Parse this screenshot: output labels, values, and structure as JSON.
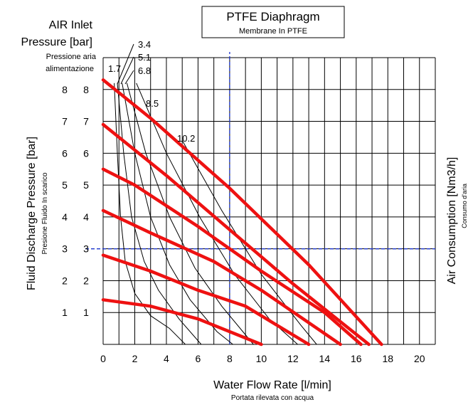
{
  "chart_data": {
    "type": "line",
    "title": "PTFE Diaphragm",
    "subtitle": "Membrane In PTFE",
    "xlabel": "Water Flow Rate [l/min]",
    "xlabel_sub": "Portata rilevata con acqua",
    "ylabel": "Fluid Discharge Pressure [bar]",
    "ylabel_sub": "Presione Fluido In scarico",
    "y2label": "Air Consumption [Nm3/h]",
    "y2label_sub": "Consumo d'aria",
    "inlet_label_line1": "AIR Inlet",
    "inlet_label_line2": "Pressure [bar]",
    "inlet_label_sub1": "Pressione aria",
    "inlet_label_sub2": "alimentazione",
    "xlim": [
      0,
      21
    ],
    "ylim": [
      0,
      9
    ],
    "x_ticks": [
      0,
      2,
      4,
      6,
      8,
      10,
      12,
      14,
      16,
      18,
      20
    ],
    "y_ticks": [
      1,
      2,
      3,
      4,
      5,
      6,
      7,
      8
    ],
    "y_ticks_outer": [
      "1",
      "2",
      "3",
      "4",
      "5",
      "6",
      "7",
      "8"
    ],
    "grid": true,
    "reference_point": {
      "x": 8,
      "y": 3
    },
    "colors": {
      "pressure_curves": "#ee1111",
      "air_curves": "#000000",
      "reference_lines": "#1a33cc",
      "grid": "#000000"
    },
    "series": [
      {
        "name": "8",
        "points": [
          [
            0,
            8.3
          ],
          [
            3,
            7.1
          ],
          [
            8,
            4.9
          ],
          [
            13,
            2.5
          ],
          [
            17.6,
            0
          ]
        ]
      },
      {
        "name": "7",
        "points": [
          [
            0,
            6.9
          ],
          [
            4,
            5.3
          ],
          [
            8,
            3.6
          ],
          [
            12,
            1.9
          ],
          [
            16.8,
            0
          ]
        ]
      },
      {
        "name": "6",
        "points": [
          [
            0,
            5.5
          ],
          [
            2,
            5.0
          ],
          [
            6,
            3.7
          ],
          [
            10,
            2.3
          ],
          [
            14,
            1.0
          ],
          [
            16.3,
            0
          ]
        ]
      },
      {
        "name": "5",
        "points": [
          [
            0,
            4.2
          ],
          [
            3,
            3.5
          ],
          [
            7,
            2.6
          ],
          [
            10,
            1.7
          ],
          [
            15,
            0
          ]
        ]
      },
      {
        "name": "4",
        "points": [
          [
            0,
            2.8
          ],
          [
            3,
            2.3
          ],
          [
            6,
            1.7
          ],
          [
            9,
            1.2
          ],
          [
            13,
            0
          ]
        ]
      },
      {
        "name": "3",
        "points": [
          [
            0,
            1.4
          ],
          [
            3,
            1.2
          ],
          [
            6,
            0.8
          ],
          [
            10,
            0
          ]
        ]
      }
    ],
    "air_consumption_series": [
      {
        "name": "1.7",
        "points": [
          [
            0.7,
            8.2
          ],
          [
            0.9,
            6
          ],
          [
            1.1,
            4
          ],
          [
            1.4,
            2.6
          ],
          [
            2,
            1.6
          ],
          [
            3,
            0.9
          ],
          [
            4.2,
            0.5
          ],
          [
            5.2,
            0
          ]
        ]
      },
      {
        "name": "3.4",
        "points": [
          [
            0.9,
            8.2
          ],
          [
            1.3,
            6
          ],
          [
            1.8,
            4
          ],
          [
            2.6,
            2.6
          ],
          [
            3.5,
            1.7
          ],
          [
            4.8,
            0.8
          ],
          [
            6.2,
            0
          ]
        ]
      },
      {
        "name": "5.1",
        "points": [
          [
            1.2,
            8.2
          ],
          [
            2,
            6
          ],
          [
            3,
            4
          ],
          [
            4.2,
            2.5
          ],
          [
            5.5,
            1.4
          ],
          [
            7.2,
            0.4
          ],
          [
            8.2,
            0
          ]
        ]
      },
      {
        "name": "6.8",
        "points": [
          [
            1.5,
            8.2
          ],
          [
            2.7,
            6
          ],
          [
            4.2,
            4
          ],
          [
            5.8,
            2.4
          ],
          [
            7.5,
            1.2
          ],
          [
            9.5,
            0
          ]
        ]
      },
      {
        "name": "8.5",
        "points": [
          [
            2.1,
            8.2
          ],
          [
            4,
            6
          ],
          [
            6.1,
            4
          ],
          [
            8.3,
            2.2
          ],
          [
            10.5,
            0.8
          ],
          [
            12.3,
            0
          ]
        ]
      },
      {
        "name": "10.2",
        "points": [
          [
            5,
            6.4
          ],
          [
            7.5,
            4.2
          ],
          [
            10,
            2.2
          ],
          [
            12.5,
            0.6
          ],
          [
            13.5,
            0
          ]
        ]
      }
    ]
  }
}
